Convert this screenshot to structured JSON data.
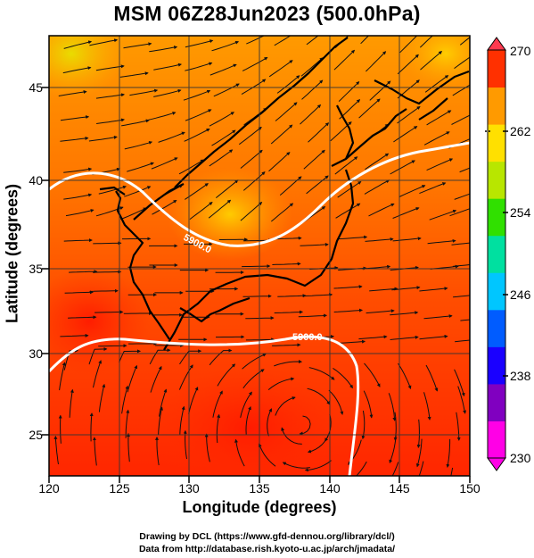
{
  "title": "MSM 06Z28Jun2023 (500.0hPa)",
  "map": {
    "xlabel": "Longitude (degrees)",
    "ylabel": "Latitude  (degrees)",
    "x_ticks": [
      "120",
      "125",
      "130",
      "135",
      "140",
      "145",
      "150"
    ],
    "y_ticks": [
      "25",
      "30",
      "35",
      "40",
      "45"
    ],
    "lon_range": [
      120,
      150
    ],
    "lat_range": [
      22.5,
      47.5
    ],
    "contour_labels": [
      "5900.0",
      "5900.0"
    ],
    "fill_colors": [
      "#ff1a00",
      "#ff4a00",
      "#ff7a00",
      "#ffb000",
      "#f5e000"
    ]
  },
  "colorbar": {
    "tick_labels": [
      "270",
      "262",
      "254",
      "246",
      "238",
      "230"
    ],
    "colors": [
      "#ff00e6",
      "#8000c0",
      "#1a00ff",
      "#005cff",
      "#00c6ff",
      "#00e0a0",
      "#30e000",
      "#b8e600",
      "#ffe000",
      "#ff9a00",
      "#ff3000"
    ]
  },
  "credits": {
    "line1": "Drawing by DCL (https://www.gfd-dennou.org/library/dcl/)",
    "line2": "Data from http://database.rish.kyoto-u.ac.jp/arch/jmadata/"
  }
}
